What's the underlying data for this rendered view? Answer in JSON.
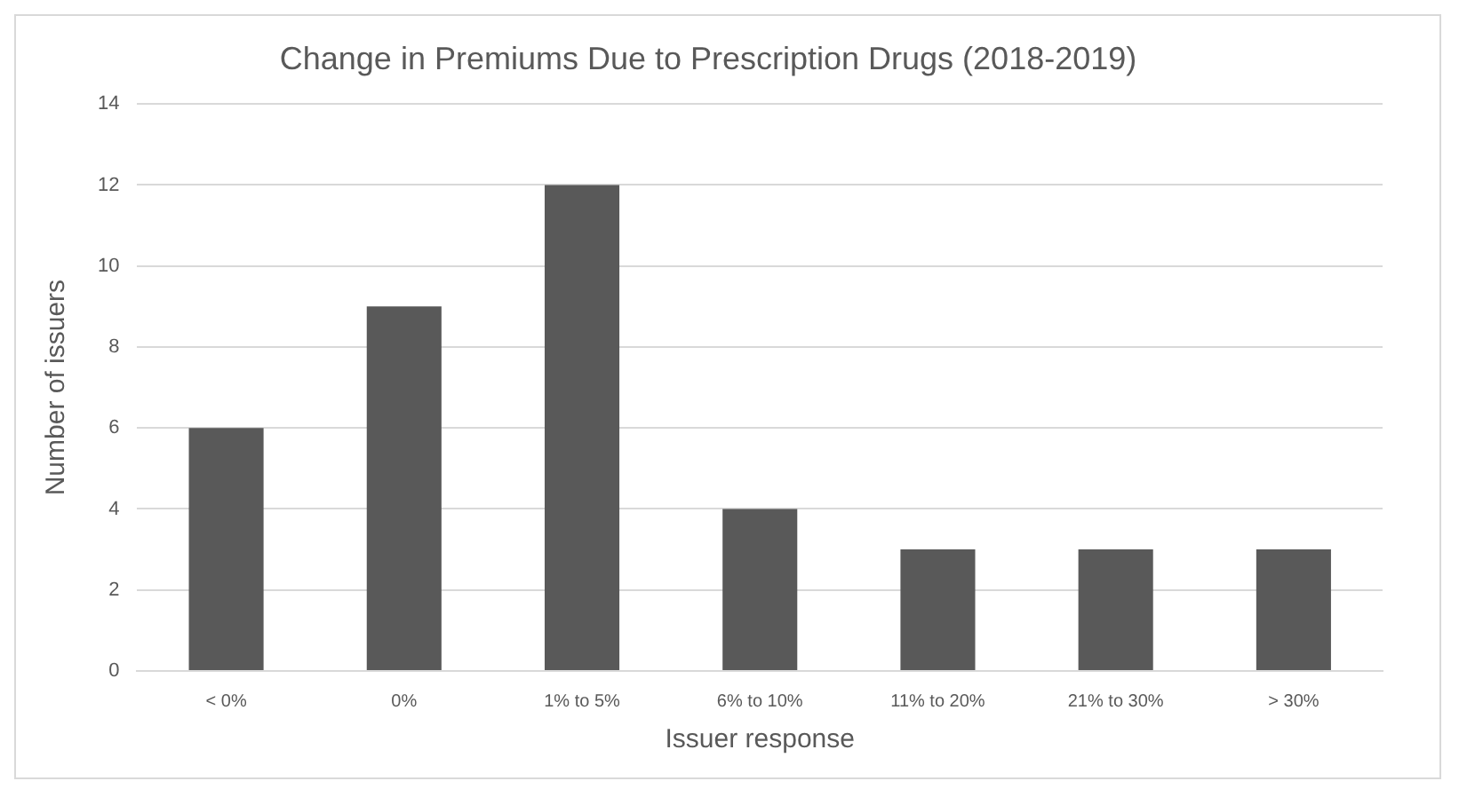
{
  "chart_data": {
    "type": "bar",
    "title": "Change in Premiums Due to Prescription Drugs (2018-2019)",
    "xlabel": "Issuer response",
    "ylabel": "Number of issuers",
    "categories": [
      "< 0%",
      "0%",
      "1% to 5%",
      "6% to 10%",
      "11% to 20%",
      "21% to 30%",
      "> 30%"
    ],
    "values": [
      6,
      9,
      12,
      4,
      3,
      3,
      3
    ],
    "color": "#595959",
    "ylim": [
      0,
      14
    ],
    "yticks": [
      0,
      2,
      4,
      6,
      8,
      10,
      12,
      14
    ],
    "grid": "y",
    "legend": false
  }
}
